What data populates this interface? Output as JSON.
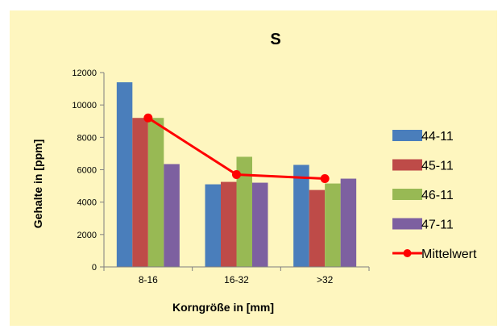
{
  "chart_data": {
    "type": "bar",
    "title": "S",
    "xlabel": "Korngröße in [mm]",
    "ylabel": "Gehalte in [ppm]",
    "categories": [
      "8-16",
      "16-32",
      ">32"
    ],
    "ylim": [
      0,
      12000
    ],
    "yticks": [
      "0",
      "2000",
      "4000",
      "6000",
      "8000",
      "10000",
      "12000"
    ],
    "series": [
      {
        "name": "44-11",
        "color": "#4a7ebb",
        "values": [
          11400,
          5100,
          6300
        ]
      },
      {
        "name": "45-11",
        "color": "#be4b48",
        "values": [
          9200,
          5250,
          4750
        ]
      },
      {
        "name": "46-11",
        "color": "#98b954",
        "values": [
          9200,
          6800,
          5150
        ]
      },
      {
        "name": "47-11",
        "color": "#7d60a0",
        "values": [
          6350,
          5200,
          5450
        ]
      }
    ],
    "line_series": {
      "name": "Mittelwert",
      "color": "#ff0000",
      "values": [
        9200,
        5700,
        5450
      ]
    },
    "grid": false,
    "legend_position": "right"
  }
}
